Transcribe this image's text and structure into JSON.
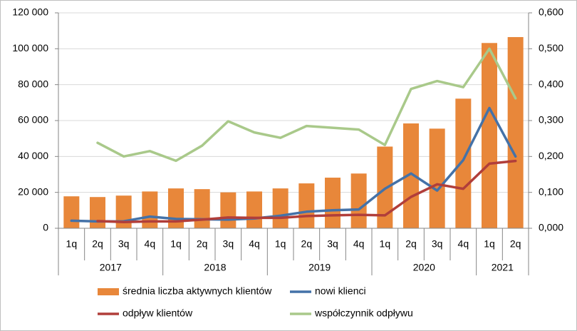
{
  "chart_data": {
    "type": "bar",
    "categories": [
      "1q",
      "2q",
      "3q",
      "4q",
      "1q",
      "2q",
      "3q",
      "4q",
      "1q",
      "2q",
      "3q",
      "4q",
      "1q",
      "2q",
      "3q",
      "4q",
      "1q",
      "2q"
    ],
    "years": [
      {
        "label": "2017",
        "count": 4
      },
      {
        "label": "2018",
        "count": 4
      },
      {
        "label": "2019",
        "count": 4
      },
      {
        "label": "2020",
        "count": 4
      },
      {
        "label": "2021",
        "count": 2
      }
    ],
    "left_axis": {
      "ylim": [
        0,
        120000
      ],
      "ticks": [
        0,
        20000,
        40000,
        60000,
        80000,
        100000,
        120000
      ],
      "tick_labels": [
        "0",
        "20 000",
        "40 000",
        "60 000",
        "80 000",
        "100 000",
        "120 000"
      ]
    },
    "right_axis": {
      "ylim": [
        0,
        0.6
      ],
      "ticks": [
        0,
        0.1,
        0.2,
        0.3,
        0.4,
        0.5,
        0.6
      ],
      "tick_labels": [
        "0,000",
        "0,100",
        "0,200",
        "0,300",
        "0,400",
        "0,500",
        "0,600"
      ]
    },
    "series": [
      {
        "name": "średnia liczba aktywnych klientów",
        "kind": "bar",
        "axis": "left",
        "color": "#E8873A",
        "values": [
          17800,
          17400,
          18200,
          20500,
          22200,
          21800,
          20000,
          20500,
          22200,
          25000,
          28200,
          30500,
          45500,
          58400,
          55500,
          72200,
          103200,
          106500
        ]
      },
      {
        "name": "nowi klienci",
        "kind": "line",
        "axis": "left",
        "color": "#4472A8",
        "values": [
          4200,
          3800,
          3900,
          6500,
          5200,
          5000,
          4800,
          5500,
          7000,
          9200,
          10000,
          10500,
          22000,
          30500,
          21000,
          38000,
          67000,
          40000
        ]
      },
      {
        "name": "odpływ klientów",
        "kind": "line",
        "axis": "left",
        "color": "#B13E3A",
        "values": [
          null,
          4000,
          3500,
          3800,
          3800,
          4800,
          6000,
          5800,
          5800,
          6800,
          7200,
          7500,
          7200,
          17500,
          24500,
          22000,
          36000,
          37500
        ]
      },
      {
        "name": "współczynnik odpływu",
        "kind": "line",
        "axis": "right",
        "color": "#A9C98A",
        "values": [
          null,
          0.238,
          0.2,
          0.215,
          0.188,
          0.23,
          0.298,
          0.267,
          0.252,
          0.285,
          0.28,
          0.275,
          0.232,
          0.388,
          0.41,
          0.393,
          0.5,
          0.362
        ]
      }
    ],
    "legend": {
      "placement": "bottom",
      "entries": [
        "średnia liczba aktywnych klientów",
        "nowi klienci",
        "odpływ klientów",
        "współczynnik odpływu"
      ]
    },
    "grid": "horizontal"
  }
}
